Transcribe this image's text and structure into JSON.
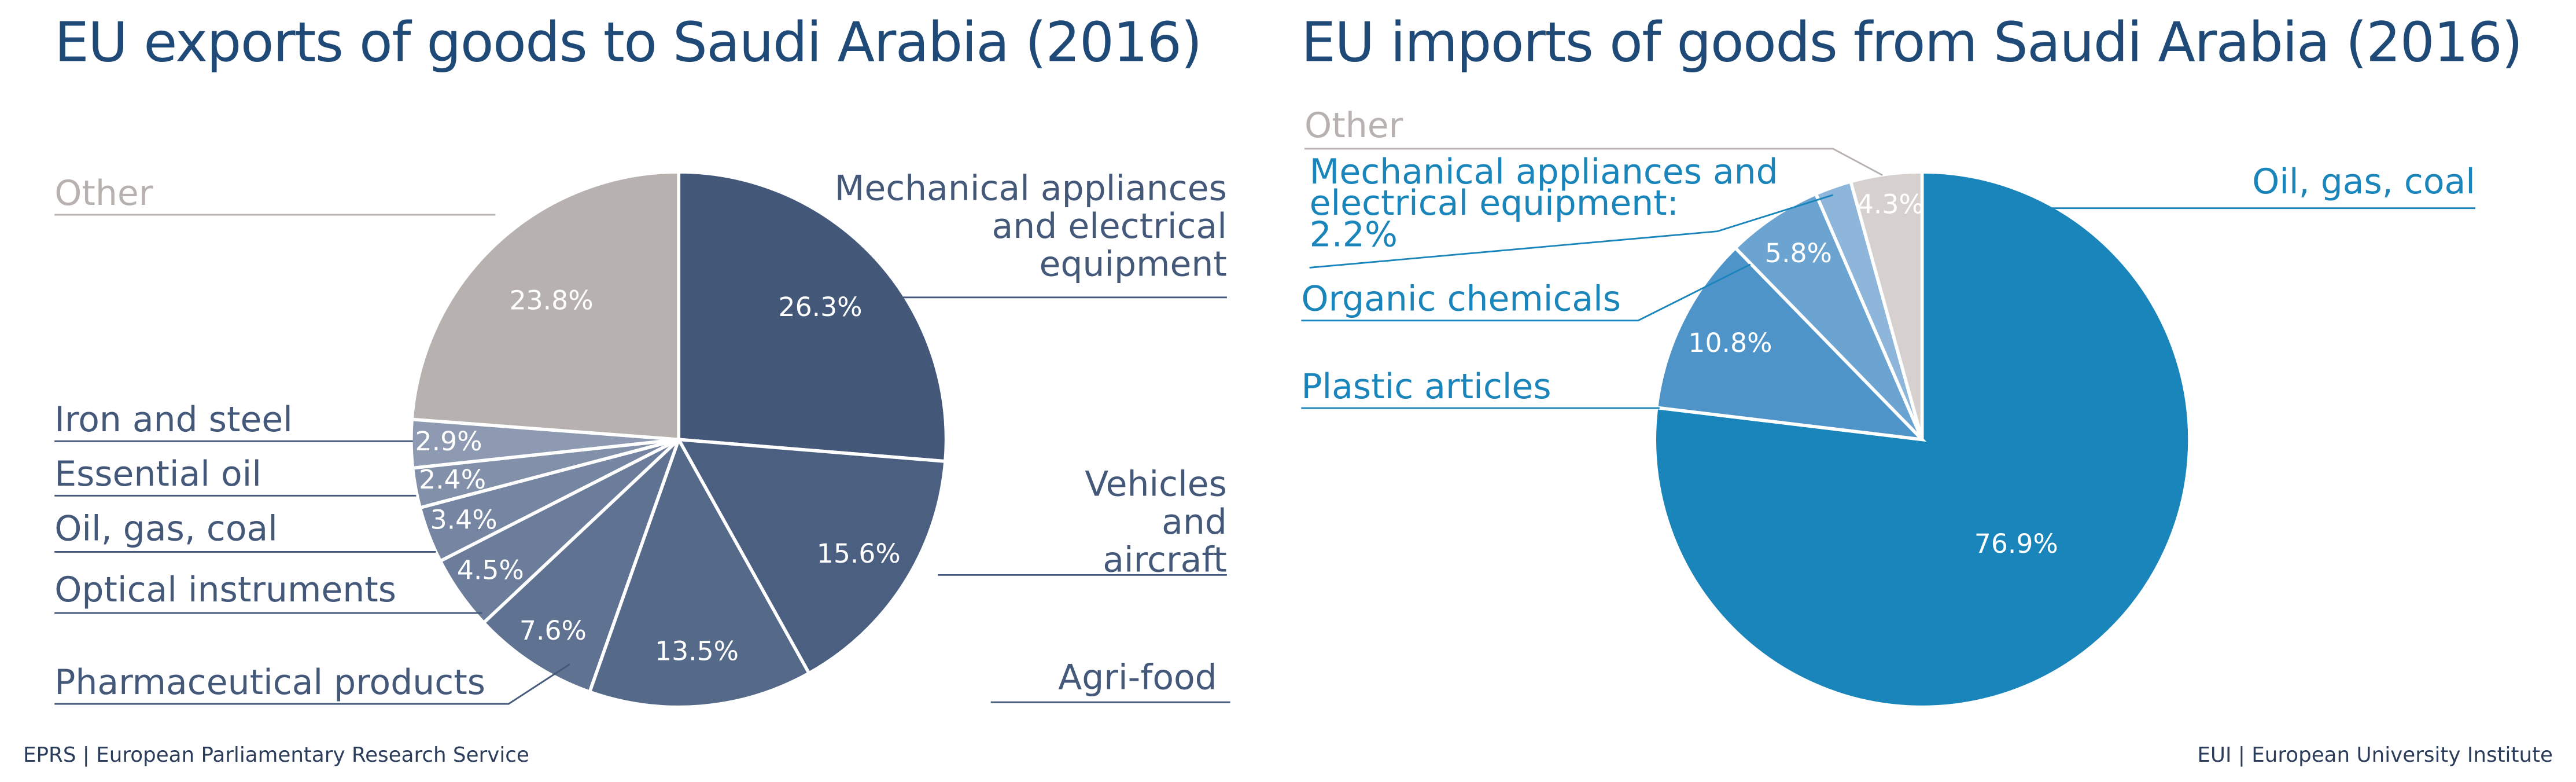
{
  "chart_data": [
    {
      "type": "pie",
      "title": "EU exports of goods to Saudi Arabia (2016)",
      "categories": [
        "Mechanical appliances and electrical equipment",
        "Vehicles and aircraft",
        "Agri-food",
        "Pharmaceutical products",
        "Optical instruments",
        "Oil, gas, coal",
        "Essential oil",
        "Iron and steel",
        "Other"
      ],
      "values": [
        26.3,
        15.6,
        13.5,
        7.6,
        4.5,
        3.4,
        2.4,
        2.9,
        23.8
      ],
      "value_labels": [
        "26.3%",
        "15.6%",
        "13.5%",
        "7.6%",
        "4.5%",
        "3.4%",
        "2.4%",
        "2.9%",
        "23.8%"
      ],
      "colors": [
        "#44587a",
        "#4b5f81",
        "#556988",
        "#607291",
        "#6b7d9a",
        "#7686a2",
        "#8290aa",
        "#8d9ab1",
        "#b7b2af"
      ],
      "source": "EPRS | European Parliamentary Research Service"
    },
    {
      "type": "pie",
      "title": "EU imports of goods from Saudi Arabia (2016)",
      "categories": [
        "Oil, gas, coal",
        "Plastic articles",
        "Organic chemicals",
        "Mechanical appliances and electrical equipment:",
        "Other"
      ],
      "values": [
        76.9,
        10.8,
        5.8,
        2.2,
        4.3
      ],
      "value_labels": [
        "76.9%",
        "10.8%",
        "5.8%",
        "2.2%",
        "4.3%"
      ],
      "colors": [
        "#1a85bb",
        "#4f94c9",
        "#6ca4d1",
        "#8db6da",
        "#d6d1ce"
      ],
      "source": "EUI | European University Institute"
    }
  ]
}
